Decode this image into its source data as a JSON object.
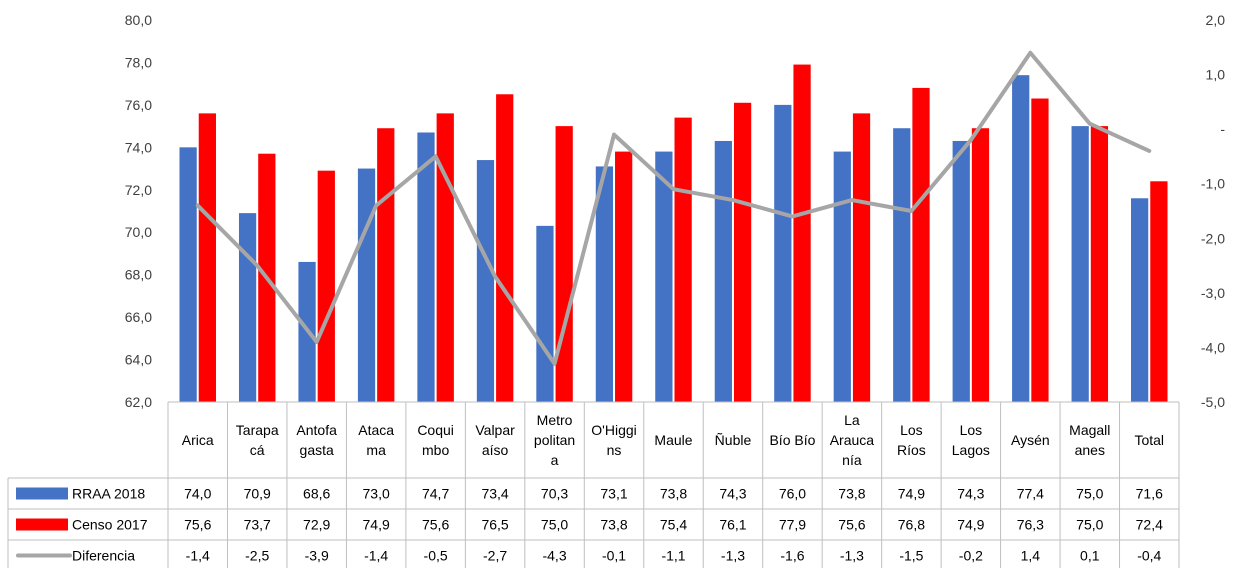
{
  "chart_data": {
    "type": "bar",
    "categories": [
      [
        "Arica"
      ],
      [
        "Tarapa",
        "cá"
      ],
      [
        "Antofa",
        "gasta"
      ],
      [
        "Ataca",
        "ma"
      ],
      [
        "Coqui",
        "mbo"
      ],
      [
        "Valpar",
        "aíso"
      ],
      [
        "Metro",
        "politan",
        "a"
      ],
      [
        "O'Higgi",
        "ns"
      ],
      [
        "Maule"
      ],
      [
        "Ñuble"
      ],
      [
        "Bío Bío"
      ],
      [
        "La",
        "Arauca",
        "nía"
      ],
      [
        "Los",
        "Ríos"
      ],
      [
        "Los",
        "Lagos"
      ],
      [
        "Aysén"
      ],
      [
        "Magall",
        "anes"
      ],
      [
        "Total"
      ]
    ],
    "series": [
      {
        "name": "RRAA 2018",
        "kind": "bar",
        "axis": "left",
        "color": "#4472c4",
        "values": [
          74.0,
          70.9,
          68.6,
          73.0,
          74.7,
          73.4,
          70.3,
          73.1,
          73.8,
          74.3,
          76.0,
          73.8,
          74.9,
          74.3,
          77.4,
          75.0,
          71.6
        ],
        "labels": [
          "74,0",
          "70,9",
          "68,6",
          "73,0",
          "74,7",
          "73,4",
          "70,3",
          "73,1",
          "73,8",
          "74,3",
          "76,0",
          "73,8",
          "74,9",
          "74,3",
          "77,4",
          "75,0",
          "71,6"
        ]
      },
      {
        "name": "Censo 2017",
        "kind": "bar",
        "axis": "left",
        "color": "#ff0000",
        "values": [
          75.6,
          73.7,
          72.9,
          74.9,
          75.6,
          76.5,
          75.0,
          73.8,
          75.4,
          76.1,
          77.9,
          75.6,
          76.8,
          74.9,
          76.3,
          75.0,
          72.4
        ],
        "labels": [
          "75,6",
          "73,7",
          "72,9",
          "74,9",
          "75,6",
          "76,5",
          "75,0",
          "73,8",
          "75,4",
          "76,1",
          "77,9",
          "75,6",
          "76,8",
          "74,9",
          "76,3",
          "75,0",
          "72,4"
        ]
      },
      {
        "name": "Diferencia",
        "kind": "line",
        "axis": "right",
        "color": "#a6a6a6",
        "values": [
          -1.4,
          -2.5,
          -3.9,
          -1.4,
          -0.5,
          -2.7,
          -4.3,
          -0.1,
          -1.1,
          -1.3,
          -1.6,
          -1.3,
          -1.5,
          -0.2,
          1.4,
          0.1,
          -0.4
        ],
        "labels": [
          "-1,4",
          "-2,5",
          "-3,9",
          "-1,4",
          "-0,5",
          "-2,7",
          "-4,3",
          "-0,1",
          "-1,1",
          "-1,3",
          "-1,6",
          "-1,3",
          "-1,5",
          "-0,2",
          "1,4",
          "0,1",
          "-0,4"
        ]
      }
    ],
    "left_axis": {
      "min": 62,
      "max": 80,
      "ticks": [
        {
          "value": 80,
          "label": "80,0"
        },
        {
          "value": 78,
          "label": "78,0"
        },
        {
          "value": 76,
          "label": "76,0"
        },
        {
          "value": 74,
          "label": "74,0"
        },
        {
          "value": 72,
          "label": "72,0"
        },
        {
          "value": 70,
          "label": "70,0"
        },
        {
          "value": 68,
          "label": "68,0"
        },
        {
          "value": 66,
          "label": "66,0"
        },
        {
          "value": 64,
          "label": "64,0"
        },
        {
          "value": 62,
          "label": "62,0"
        }
      ]
    },
    "right_axis": {
      "min": -5,
      "max": 2,
      "ticks": [
        {
          "value": 2,
          "label": "2,0"
        },
        {
          "value": 1,
          "label": "1,0"
        },
        {
          "value": 0,
          "label": "-"
        },
        {
          "value": -1,
          "label": "-1,0"
        },
        {
          "value": -2,
          "label": "-2,0"
        },
        {
          "value": -3,
          "label": "-3,0"
        },
        {
          "value": -4,
          "label": "-4,0"
        },
        {
          "value": -5,
          "label": "-5,0"
        }
      ]
    },
    "legend": "data-table",
    "grid": false
  }
}
